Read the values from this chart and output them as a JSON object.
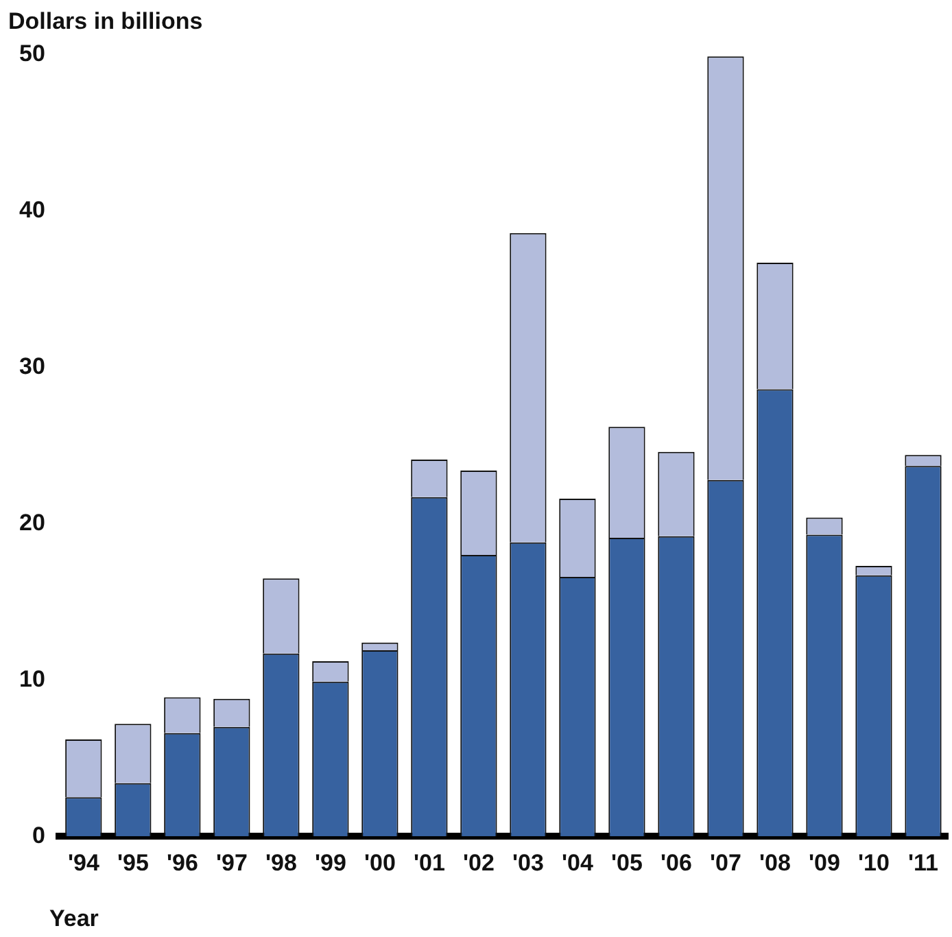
{
  "chart_data": {
    "type": "bar",
    "ylabel": "Dollars in billions",
    "xlabel": "Year",
    "stacked": true,
    "grid": false,
    "legend": false,
    "categories": [
      "'94",
      "'95",
      "'96",
      "'97",
      "'98",
      "'99",
      "'00",
      "'01",
      "'02",
      "'03",
      "'04",
      "'05",
      "'06",
      "'07",
      "'08",
      "'09",
      "'10",
      "'11"
    ],
    "series": [
      {
        "color": "#3762a0",
        "values": [
          2.5,
          3.4,
          6.6,
          7.0,
          11.7,
          9.9,
          11.9,
          21.7,
          18.0,
          18.8,
          16.6,
          19.1,
          19.2,
          22.8,
          28.6,
          19.3,
          16.7,
          23.7
        ]
      },
      {
        "color": "#b3bcdc",
        "values": [
          3.7,
          3.8,
          2.3,
          1.8,
          4.8,
          1.3,
          0.5,
          2.4,
          5.4,
          19.8,
          5.0,
          7.1,
          5.4,
          27.1,
          8.1,
          1.1,
          0.6,
          0.7
        ]
      }
    ],
    "ylim": [
      0,
      50
    ],
    "yticks": [
      0,
      10,
      20,
      30,
      40,
      50
    ]
  }
}
